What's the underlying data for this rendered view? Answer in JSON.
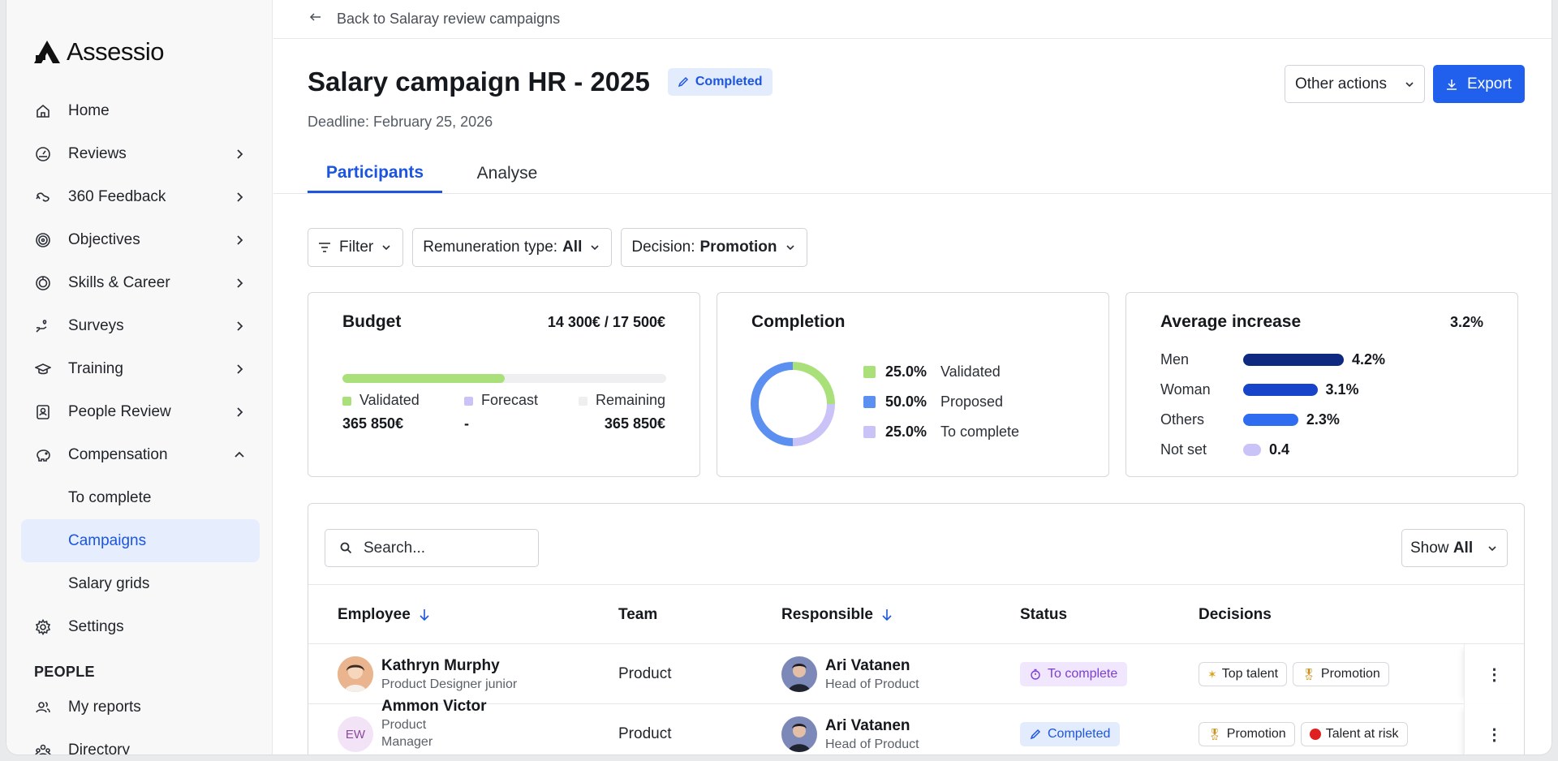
{
  "app": {
    "name": "Assessio"
  },
  "sidebar": {
    "items": [
      {
        "label": "Home",
        "icon": "home-icon"
      },
      {
        "label": "Reviews",
        "icon": "gauge-icon"
      },
      {
        "label": "360 Feedback",
        "icon": "feedback-loop-icon"
      },
      {
        "label": "Objectives",
        "icon": "target-icon"
      },
      {
        "label": "Skills & Career",
        "icon": "skills-icon"
      },
      {
        "label": "Surveys",
        "icon": "hand-heart-icon"
      },
      {
        "label": "Training",
        "icon": "graduation-cap-icon"
      },
      {
        "label": "People Review",
        "icon": "id-card-icon"
      },
      {
        "label": "Compensation",
        "icon": "piggy-bank-icon"
      }
    ],
    "sub_items": [
      {
        "label": "To complete"
      },
      {
        "label": "Campaigns"
      },
      {
        "label": "Salary grids"
      }
    ],
    "settings": {
      "label": "Settings",
      "icon": "gear-icon"
    },
    "section_people": "PEOPLE",
    "people_items": [
      {
        "label": "My reports",
        "icon": "users-icon"
      },
      {
        "label": "Directory",
        "icon": "org-icon"
      }
    ]
  },
  "header": {
    "back_label": "Back to Salaray review campaigns",
    "title": "Salary campaign HR - 2025",
    "status_badge": "Completed",
    "deadline": "Deadline: February 25, 2026",
    "other_actions": "Other actions",
    "export": "Export"
  },
  "tabs": [
    {
      "label": "Participants",
      "active": true
    },
    {
      "label": "Analyse",
      "active": false
    }
  ],
  "filters": {
    "filter_label": "Filter",
    "remuneration_label": "Remuneration type:",
    "remuneration_value": "All",
    "decision_label": "Decision:",
    "decision_value": "Promotion"
  },
  "budget": {
    "title": "Budget",
    "value": "14 300€ / 17 500€",
    "validated_fraction": 0.5,
    "legend": [
      {
        "label": "Validated",
        "value": "365 850€",
        "color": "#a9e07a"
      },
      {
        "label": "Forecast",
        "value": "-",
        "color": "#c9c3f7"
      },
      {
        "label": "Remaining",
        "value": "365 850€",
        "color": "#efeff1"
      }
    ]
  },
  "completion": {
    "title": "Completion",
    "segments": [
      {
        "pct": "25.0%",
        "label": "Validated",
        "value": 25,
        "color": "#a9e07a"
      },
      {
        "pct": "50.0%",
        "label": "Proposed",
        "value": 50,
        "color": "#5b8ff0"
      },
      {
        "pct": "25.0%",
        "label": "To complete",
        "value": 25,
        "color": "#c9c3f7"
      }
    ]
  },
  "average": {
    "title": "Average increase",
    "value": "3.2%",
    "rows": [
      {
        "label": "Men",
        "pct": "4.2%",
        "value": 4.2,
        "color": "#0d2a80"
      },
      {
        "label": "Woman",
        "pct": "3.1%",
        "value": 3.1,
        "color": "#1744c9"
      },
      {
        "label": "Others",
        "pct": "2.3%",
        "value": 2.3,
        "color": "#2e6df0"
      },
      {
        "label": "Not set",
        "pct": "0.4",
        "value": 0.4,
        "color": "#c9c3f7"
      }
    ]
  },
  "table": {
    "search_placeholder": "Search...",
    "show_label": "Show",
    "show_value": "All",
    "columns": [
      "Employee",
      "Team",
      "Responsible",
      "Status",
      "Decisions"
    ],
    "rows": [
      {
        "name": "Kathryn Murphy",
        "role": "Product Designer junior",
        "avatar": "photo",
        "team": "Product",
        "resp_name": "Ari Vatanen",
        "resp_role": "Head of Product",
        "status": "To complete",
        "tags": [
          {
            "label": "Top talent",
            "icon": "sparkle-icon"
          },
          {
            "label": "Promotion",
            "icon": "medal-icon"
          }
        ]
      },
      {
        "name": "Ammon Victor",
        "role": "Product",
        "role2": "Manager",
        "avatar": "EW",
        "team": "Product",
        "resp_name": "Ari Vatanen",
        "resp_role": "Head of Product",
        "status": "Completed",
        "tags": [
          {
            "label": "Promotion",
            "icon": "medal-icon"
          },
          {
            "label": "Talent at risk",
            "icon": "red-circle-icon"
          }
        ]
      }
    ]
  }
}
